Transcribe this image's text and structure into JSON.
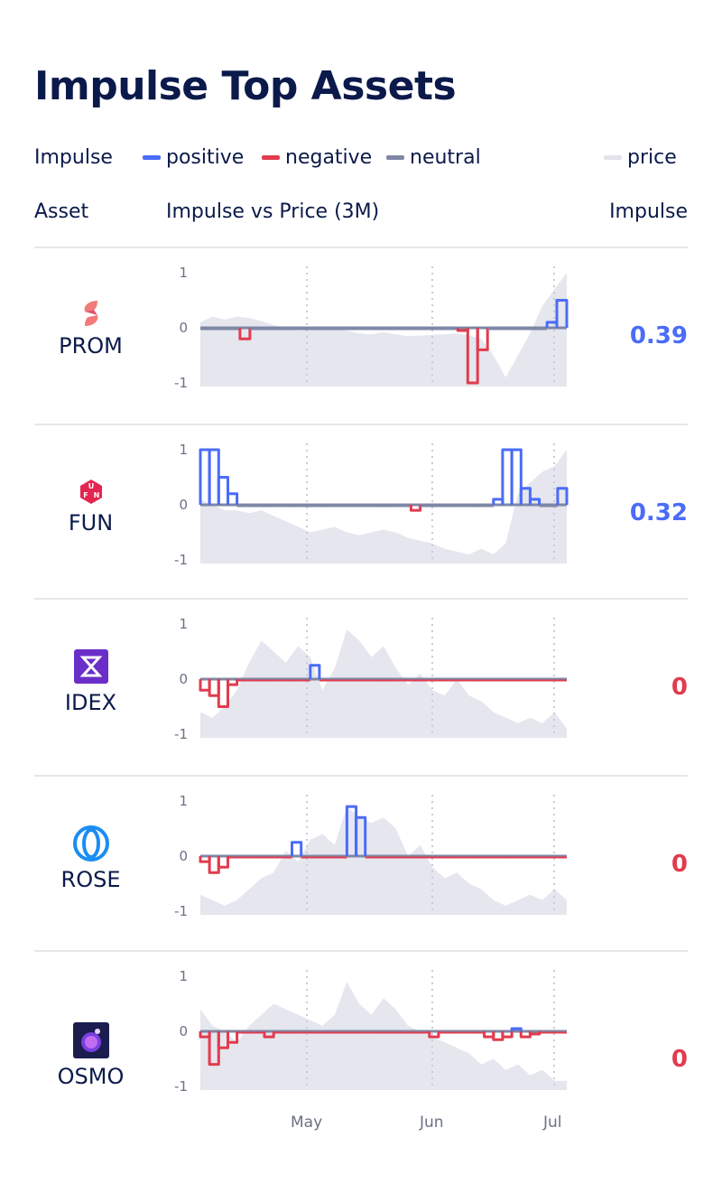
{
  "title": "Impulse Top Assets",
  "legend": {
    "label": "Impulse",
    "items": [
      {
        "label": "positive",
        "color": "#4a6cf7"
      },
      {
        "label": "negative",
        "color": "#e23b4e"
      },
      {
        "label": "neutral",
        "color": "#7e87a6"
      },
      {
        "label": "price",
        "color": "#e2e3ec"
      }
    ]
  },
  "headers": {
    "asset": "Asset",
    "chart": "Impulse vs Price (3M)",
    "impulse": "Impulse"
  },
  "chart_data": {
    "type": "line",
    "x_ticks": [
      "May",
      "Jun",
      "Jul"
    ],
    "y_ticks": [
      "1",
      "0",
      "-1"
    ],
    "ylim": [
      -1,
      1
    ],
    "series": [
      {
        "name": "PROM",
        "icon": "prom-logo-icon",
        "impulse": "0.39",
        "impulse_sign": "positive",
        "price": [
          0.1,
          0.2,
          0.15,
          0.2,
          0.18,
          0.12,
          0.05,
          0.0,
          -0.05,
          -0.02,
          0.0,
          -0.03,
          -0.05,
          -0.1,
          -0.12,
          -0.08,
          -0.12,
          -0.15,
          -0.14,
          -0.13,
          -0.12,
          -0.1,
          -0.14,
          -0.2,
          -0.5,
          -0.9,
          -0.5,
          -0.1,
          0.4,
          0.7,
          1.0
        ],
        "impulse_values": [
          0,
          0,
          0,
          0,
          -0.2,
          0,
          0,
          0,
          0,
          0,
          0,
          0,
          0,
          0,
          0,
          0,
          0,
          0,
          0,
          0,
          0,
          0,
          0,
          0,
          0,
          0,
          -0.05,
          -1.0,
          -0.4,
          0,
          0,
          0,
          0,
          0,
          0,
          0.1,
          0.5
        ]
      },
      {
        "name": "FUN",
        "icon": "fun-logo-icon",
        "impulse": "0.32",
        "impulse_sign": "positive",
        "price": [
          0.1,
          0.0,
          -0.1,
          -0.1,
          -0.15,
          -0.1,
          -0.2,
          -0.3,
          -0.4,
          -0.5,
          -0.45,
          -0.4,
          -0.5,
          -0.55,
          -0.5,
          -0.45,
          -0.5,
          -0.6,
          -0.65,
          -0.7,
          -0.8,
          -0.85,
          -0.9,
          -0.8,
          -0.9,
          -0.7,
          0.2,
          0.4,
          0.6,
          0.7,
          1.0
        ],
        "impulse_values": [
          1.0,
          1.0,
          0.5,
          0.2,
          0,
          0,
          0,
          0,
          0,
          0,
          0,
          0,
          0,
          0,
          0,
          0,
          0,
          0,
          0,
          0,
          0,
          0,
          0,
          -0.1,
          0,
          0,
          0,
          0,
          0,
          0,
          0,
          0,
          0.1,
          1.0,
          1.0,
          0.3,
          0.1,
          0,
          0,
          0.3
        ]
      },
      {
        "name": "IDEX",
        "icon": "idex-logo-icon",
        "impulse": "0",
        "impulse_sign": "negative",
        "price": [
          -0.6,
          -0.7,
          -0.5,
          -0.2,
          0.3,
          0.7,
          0.5,
          0.3,
          0.6,
          0.4,
          -0.2,
          0.2,
          0.9,
          0.7,
          0.4,
          0.6,
          0.2,
          -0.1,
          0.1,
          -0.2,
          -0.3,
          0.0,
          -0.3,
          -0.4,
          -0.6,
          -0.7,
          -0.8,
          -0.7,
          -0.8,
          -0.6,
          -0.9
        ],
        "impulse_values": [
          -0.2,
          -0.3,
          -0.5,
          -0.1,
          0,
          0,
          0,
          0,
          0,
          0,
          0,
          0,
          0.25,
          0,
          0,
          0,
          0,
          0,
          0,
          0,
          0,
          0,
          0,
          0,
          0,
          0,
          0,
          0,
          0,
          0,
          0,
          0,
          0,
          0,
          0,
          0,
          0,
          0,
          0,
          0
        ]
      },
      {
        "name": "ROSE",
        "icon": "rose-logo-icon",
        "impulse": "0",
        "impulse_sign": "negative",
        "price": [
          -0.7,
          -0.8,
          -0.9,
          -0.8,
          -0.6,
          -0.4,
          -0.3,
          0.1,
          -0.1,
          0.3,
          0.4,
          0.2,
          0.9,
          0.7,
          0.6,
          0.7,
          0.5,
          0.0,
          0.2,
          -0.2,
          -0.4,
          -0.3,
          -0.5,
          -0.6,
          -0.8,
          -0.9,
          -0.8,
          -0.7,
          -0.8,
          -0.6,
          -0.8
        ],
        "impulse_values": [
          -0.1,
          -0.3,
          -0.2,
          0,
          0,
          0,
          0,
          0,
          0,
          0,
          0.25,
          0,
          0,
          0,
          0,
          0,
          0.9,
          0.7,
          0,
          0,
          0,
          0,
          0,
          0,
          0,
          0,
          0,
          0,
          0,
          0,
          0,
          0,
          0,
          0,
          0,
          0,
          0,
          0,
          0,
          0
        ]
      },
      {
        "name": "OSMO",
        "icon": "osmo-logo-icon",
        "impulse": "0",
        "impulse_sign": "negative",
        "price": [
          0.4,
          0.1,
          0.0,
          -0.2,
          0.1,
          0.3,
          0.5,
          0.4,
          0.3,
          0.2,
          0.1,
          0.3,
          0.9,
          0.5,
          0.3,
          0.6,
          0.4,
          0.1,
          0.0,
          -0.1,
          -0.2,
          -0.3,
          -0.4,
          -0.6,
          -0.5,
          -0.7,
          -0.6,
          -0.8,
          -0.7,
          -0.9,
          -0.9
        ],
        "impulse_values": [
          -0.1,
          -0.6,
          -0.3,
          -0.2,
          0,
          0,
          0,
          -0.1,
          0,
          0,
          0,
          0,
          0,
          0,
          0,
          0,
          0,
          0,
          0,
          0,
          0,
          0,
          0,
          0,
          0,
          -0.1,
          0,
          0,
          0,
          0,
          0,
          -0.1,
          -0.15,
          -0.1,
          0.05,
          -0.1,
          -0.05,
          0,
          0,
          0
        ]
      }
    ]
  }
}
